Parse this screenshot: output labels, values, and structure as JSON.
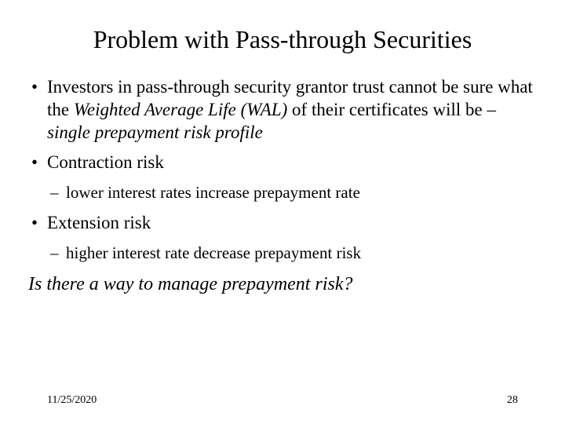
{
  "title": "Problem with Pass-through Securities",
  "bullets": {
    "b1_pre": "Investors in pass-through security grantor trust cannot be sure what the ",
    "b1_em1": "Weighted Average Life (WAL)",
    "b1_mid": " of their certificates will be – ",
    "b1_em2": "single prepayment risk profile",
    "b2": "Contraction risk",
    "b2_sub": "lower interest rates increase prepayment rate",
    "b3": "Extension risk",
    "b3_sub": "higher interest rate decrease prepayment risk"
  },
  "closing": "Is there a way to manage prepayment risk?",
  "footer": {
    "date": "11/25/2020",
    "page": "28"
  },
  "style": {
    "bg": "#ffffff",
    "fg": "#000000",
    "title_fontsize": 32,
    "body_fontsize": 23,
    "sub_fontsize": 21,
    "footer_fontsize": 14,
    "font_family": "Times New Roman"
  }
}
